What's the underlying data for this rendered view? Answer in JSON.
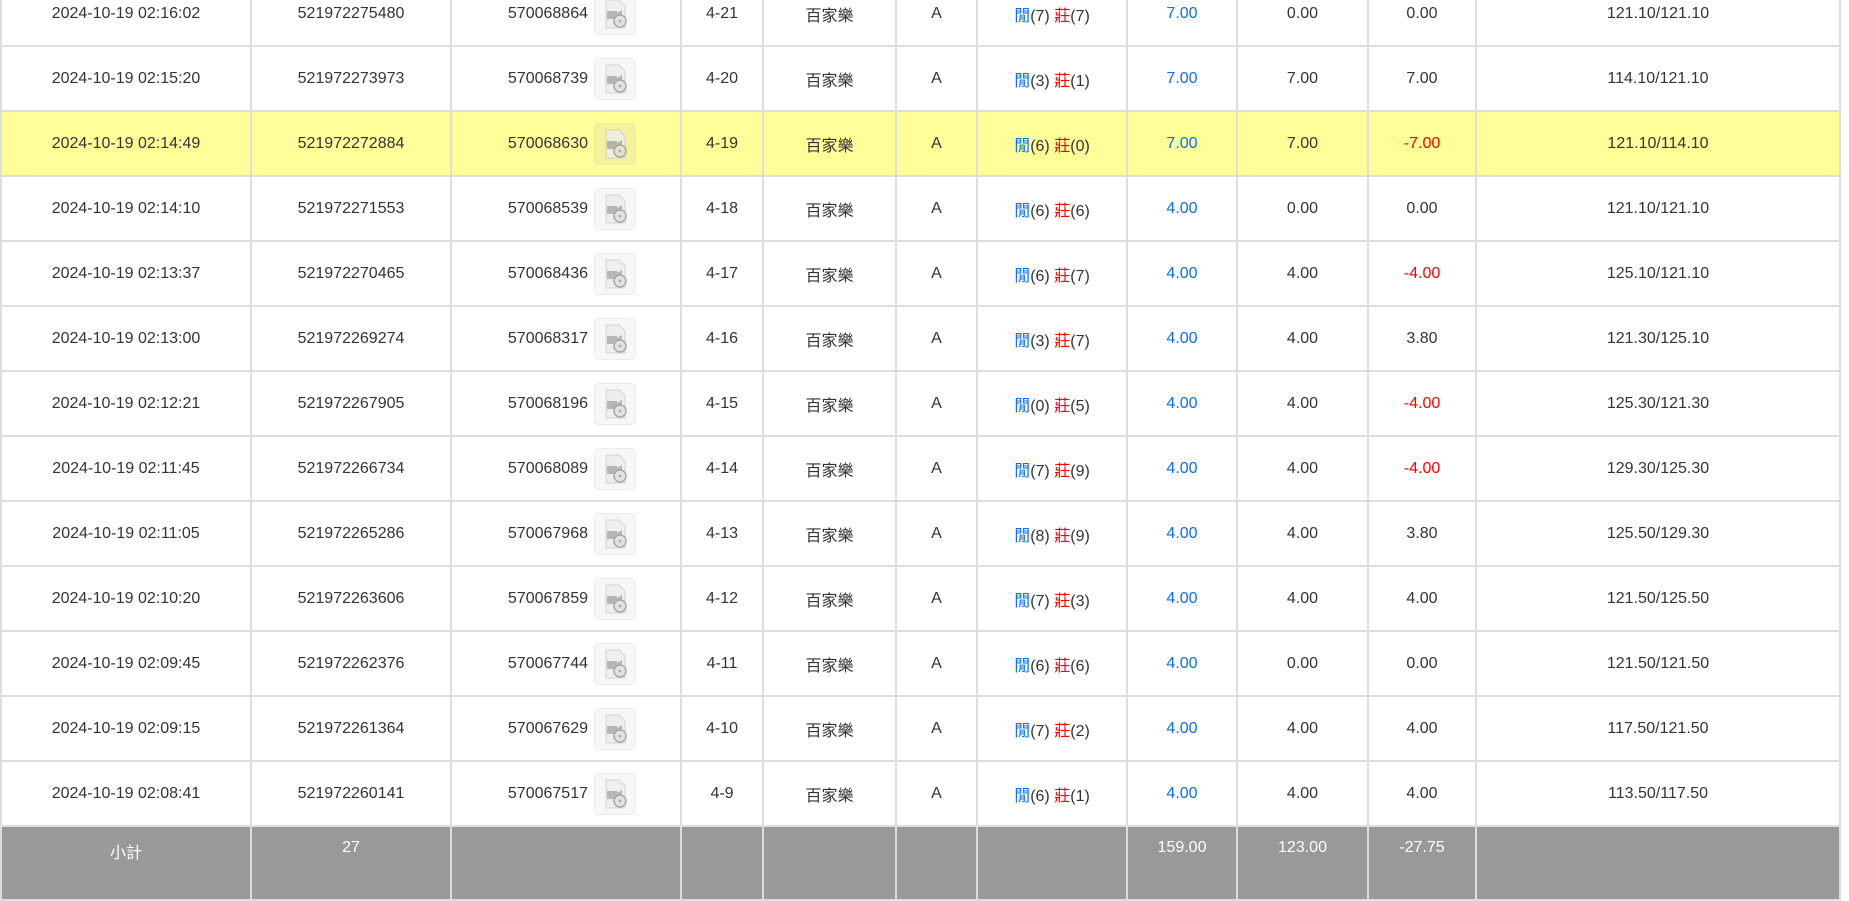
{
  "colors": {
    "player": "#0a6cff",
    "banker": "#ff0000",
    "highlight": "#ffff99",
    "subtotal_bg": "#999999"
  },
  "rows": [
    {
      "time": "2024-10-19 02:16:02",
      "bet_id": "521972275480",
      "game_id": "570068864",
      "round": "4-21",
      "game": "百家樂",
      "table": "A",
      "player_label": "閒",
      "player_pts": "(7)",
      "banker_label": "莊",
      "banker_pts": "(7)",
      "bet": "7.00",
      "valid": "0.00",
      "winloss": "0.00",
      "balance": "121.10/121.10",
      "highlighted": false
    },
    {
      "time": "2024-10-19 02:15:20",
      "bet_id": "521972273973",
      "game_id": "570068739",
      "round": "4-20",
      "game": "百家樂",
      "table": "A",
      "player_label": "閒",
      "player_pts": "(3)",
      "banker_label": "莊",
      "banker_pts": "(1)",
      "bet": "7.00",
      "valid": "7.00",
      "winloss": "7.00",
      "balance": "114.10/121.10",
      "highlighted": false
    },
    {
      "time": "2024-10-19 02:14:49",
      "bet_id": "521972272884",
      "game_id": "570068630",
      "round": "4-19",
      "game": "百家樂",
      "table": "A",
      "player_label": "閒",
      "player_pts": "(6)",
      "banker_label": "莊",
      "banker_pts": "(0)",
      "bet": "7.00",
      "valid": "7.00",
      "winloss": "-7.00",
      "balance": "121.10/114.10",
      "highlighted": true
    },
    {
      "time": "2024-10-19 02:14:10",
      "bet_id": "521972271553",
      "game_id": "570068539",
      "round": "4-18",
      "game": "百家樂",
      "table": "A",
      "player_label": "閒",
      "player_pts": "(6)",
      "banker_label": "莊",
      "banker_pts": "(6)",
      "bet": "4.00",
      "valid": "0.00",
      "winloss": "0.00",
      "balance": "121.10/121.10",
      "highlighted": false
    },
    {
      "time": "2024-10-19 02:13:37",
      "bet_id": "521972270465",
      "game_id": "570068436",
      "round": "4-17",
      "game": "百家樂",
      "table": "A",
      "player_label": "閒",
      "player_pts": "(6)",
      "banker_label": "莊",
      "banker_pts": "(7)",
      "bet": "4.00",
      "valid": "4.00",
      "winloss": "-4.00",
      "balance": "125.10/121.10",
      "highlighted": false
    },
    {
      "time": "2024-10-19 02:13:00",
      "bet_id": "521972269274",
      "game_id": "570068317",
      "round": "4-16",
      "game": "百家樂",
      "table": "A",
      "player_label": "閒",
      "player_pts": "(3)",
      "banker_label": "莊",
      "banker_pts": "(7)",
      "bet": "4.00",
      "valid": "4.00",
      "winloss": "3.80",
      "balance": "121.30/125.10",
      "highlighted": false
    },
    {
      "time": "2024-10-19 02:12:21",
      "bet_id": "521972267905",
      "game_id": "570068196",
      "round": "4-15",
      "game": "百家樂",
      "table": "A",
      "player_label": "閒",
      "player_pts": "(0)",
      "banker_label": "莊",
      "banker_pts": "(5)",
      "bet": "4.00",
      "valid": "4.00",
      "winloss": "-4.00",
      "balance": "125.30/121.30",
      "highlighted": false
    },
    {
      "time": "2024-10-19 02:11:45",
      "bet_id": "521972266734",
      "game_id": "570068089",
      "round": "4-14",
      "game": "百家樂",
      "table": "A",
      "player_label": "閒",
      "player_pts": "(7)",
      "banker_label": "莊",
      "banker_pts": "(9)",
      "bet": "4.00",
      "valid": "4.00",
      "winloss": "-4.00",
      "balance": "129.30/125.30",
      "highlighted": false
    },
    {
      "time": "2024-10-19 02:11:05",
      "bet_id": "521972265286",
      "game_id": "570067968",
      "round": "4-13",
      "game": "百家樂",
      "table": "A",
      "player_label": "閒",
      "player_pts": "(8)",
      "banker_label": "莊",
      "banker_pts": "(9)",
      "bet": "4.00",
      "valid": "4.00",
      "winloss": "3.80",
      "balance": "125.50/129.30",
      "highlighted": false
    },
    {
      "time": "2024-10-19 02:10:20",
      "bet_id": "521972263606",
      "game_id": "570067859",
      "round": "4-12",
      "game": "百家樂",
      "table": "A",
      "player_label": "閒",
      "player_pts": "(7)",
      "banker_label": "莊",
      "banker_pts": "(3)",
      "bet": "4.00",
      "valid": "4.00",
      "winloss": "4.00",
      "balance": "121.50/125.50",
      "highlighted": false
    },
    {
      "time": "2024-10-19 02:09:45",
      "bet_id": "521972262376",
      "game_id": "570067744",
      "round": "4-11",
      "game": "百家樂",
      "table": "A",
      "player_label": "閒",
      "player_pts": "(6)",
      "banker_label": "莊",
      "banker_pts": "(6)",
      "bet": "4.00",
      "valid": "0.00",
      "winloss": "0.00",
      "balance": "121.50/121.50",
      "highlighted": false
    },
    {
      "time": "2024-10-19 02:09:15",
      "bet_id": "521972261364",
      "game_id": "570067629",
      "round": "4-10",
      "game": "百家樂",
      "table": "A",
      "player_label": "閒",
      "player_pts": "(7)",
      "banker_label": "莊",
      "banker_pts": "(2)",
      "bet": "4.00",
      "valid": "4.00",
      "winloss": "4.00",
      "balance": "117.50/121.50",
      "highlighted": false
    },
    {
      "time": "2024-10-19 02:08:41",
      "bet_id": "521972260141",
      "game_id": "570067517",
      "round": "4-9",
      "game": "百家樂",
      "table": "A",
      "player_label": "閒",
      "player_pts": "(6)",
      "banker_label": "莊",
      "banker_pts": "(1)",
      "bet": "4.00",
      "valid": "4.00",
      "winloss": "4.00",
      "balance": "113.50/117.50",
      "highlighted": false
    }
  ],
  "subtotal": {
    "label": "小計",
    "count": "27",
    "bet": "159.00",
    "valid": "123.00",
    "winloss": "-27.75"
  }
}
